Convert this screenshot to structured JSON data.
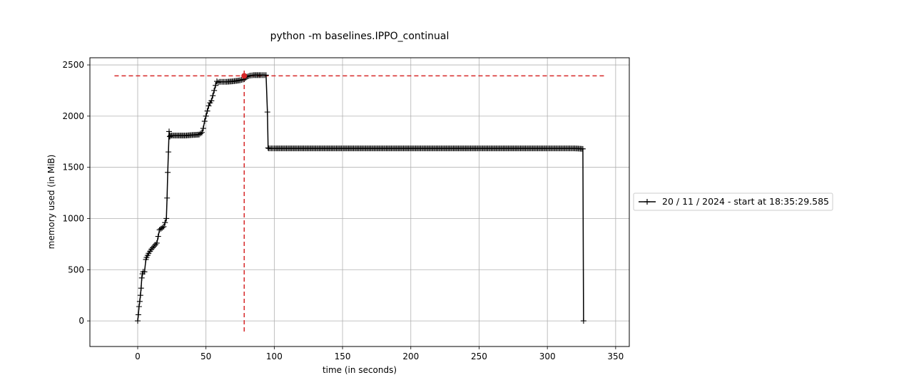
{
  "chart_data": {
    "type": "line",
    "title": "python -m baselines.IPPO_continual",
    "xlabel": "time (in seconds)",
    "ylabel": "memory used (in MiB)",
    "xlim": [
      -35,
      360
    ],
    "ylim": [
      -250,
      2570
    ],
    "xticks": [
      0,
      50,
      100,
      150,
      200,
      250,
      300,
      350
    ],
    "yticks": [
      0,
      500,
      1000,
      1500,
      2000,
      2500
    ],
    "grid": true,
    "legend_position": "right",
    "colors": {
      "series": "#000000",
      "peak": "#d62728",
      "grid": "#b0b0b0"
    },
    "series": [
      {
        "name": "20 / 11 / 2024 - start at 18:35:29.585",
        "marker": "plus",
        "x": [
          0,
          0.5,
          1,
          1.5,
          2,
          2.5,
          3,
          3.5,
          4,
          5,
          6,
          6.5,
          8,
          10,
          12,
          14,
          16,
          17,
          18,
          19,
          20,
          21,
          21.5,
          22,
          22.5,
          23,
          23.5,
          24,
          30,
          35,
          40,
          45,
          47,
          48,
          49,
          50,
          51,
          52,
          53,
          54,
          55,
          56,
          57,
          58,
          59,
          60,
          62,
          65,
          70,
          75,
          78,
          80,
          82,
          85,
          90,
          94,
          95,
          95.5,
          96,
          100,
          150,
          200,
          250,
          300,
          320,
          326,
          326.5
        ],
        "y": [
          0,
          60,
          140,
          190,
          250,
          320,
          420,
          460,
          480,
          480,
          600,
          620,
          660,
          700,
          730,
          760,
          890,
          900,
          910,
          920,
          960,
          1000,
          1200,
          1450,
          1650,
          1850,
          1800,
          1810,
          1810,
          1810,
          1815,
          1820,
          1840,
          1880,
          1950,
          2000,
          2050,
          2100,
          2130,
          2150,
          2200,
          2250,
          2300,
          2340,
          2330,
          2335,
          2335,
          2335,
          2340,
          2350,
          2360,
          2385,
          2395,
          2400,
          2400,
          2400,
          2040,
          1690,
          1685,
          1685,
          1685,
          1685,
          1685,
          1685,
          1685,
          1680,
          0
        ]
      }
    ],
    "peak_marker": {
      "x": 78,
      "y": 2393
    }
  }
}
